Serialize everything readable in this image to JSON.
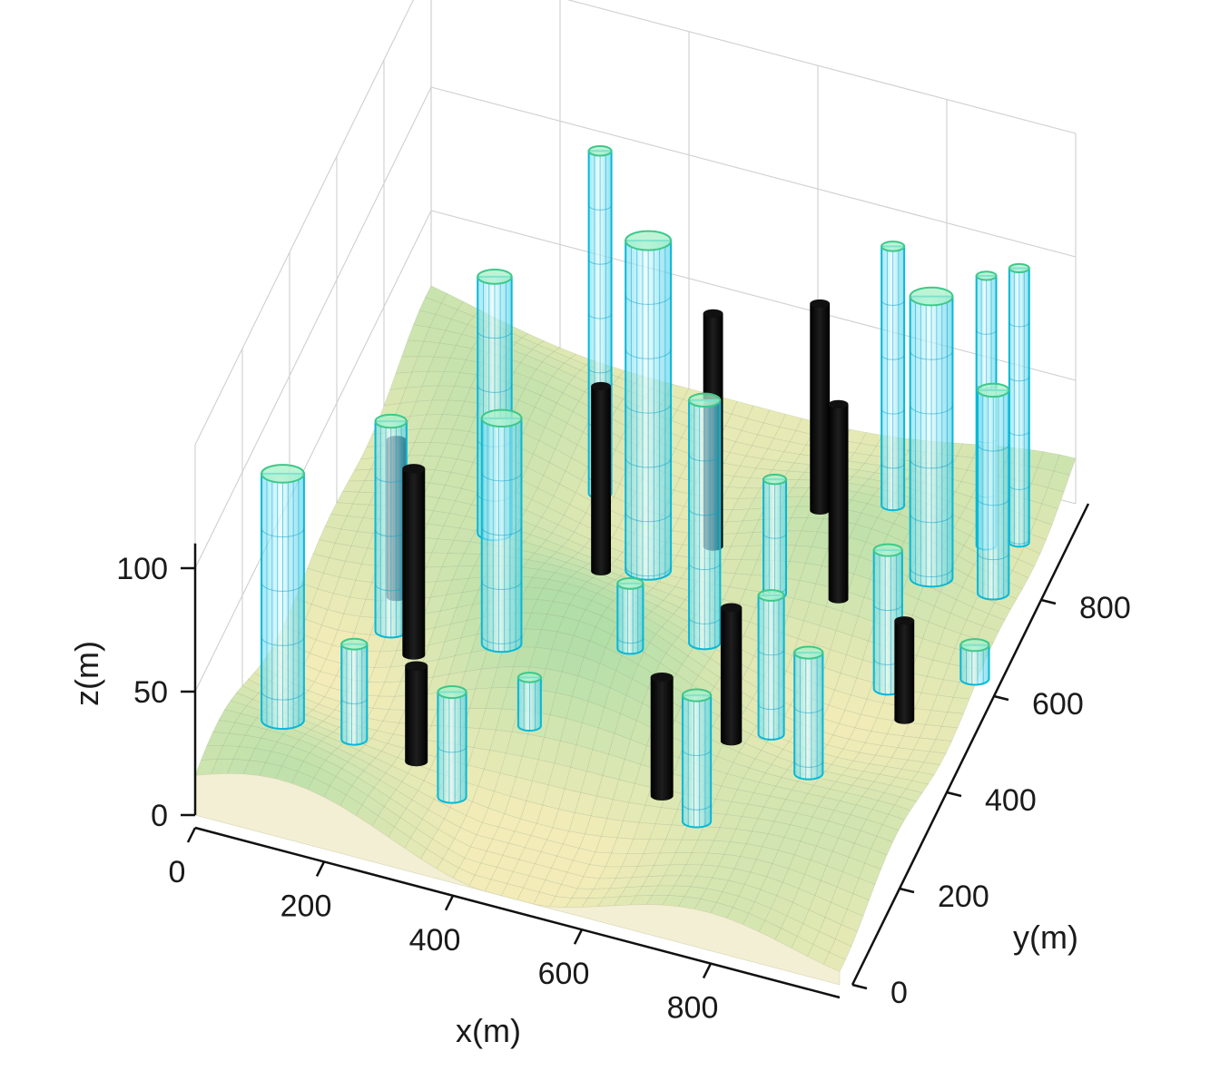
{
  "chart_data": {
    "type": "3d-surface-with-cylinders",
    "title": "",
    "xlabel": "x(m)",
    "ylabel": "y(m)",
    "zlabel": "z(m)",
    "xlim": [
      0,
      1000
    ],
    "ylim": [
      0,
      1000
    ],
    "zlim": [
      0,
      150
    ],
    "xticks": [
      0,
      200,
      400,
      600,
      800
    ],
    "xtick_labels": [
      "0",
      "200",
      "400",
      "600",
      "800"
    ],
    "yticks": [
      0,
      200,
      400,
      600,
      800
    ],
    "ytick_labels": [
      "0",
      "200",
      "400",
      "600",
      "800"
    ],
    "zticks": [
      0,
      50,
      100
    ],
    "ztick_labels": [
      "0",
      "50",
      "100"
    ],
    "grid": true,
    "colors": {
      "terrain_low": "#f3ecb8",
      "terrain_high": "#b8e0a8",
      "obstacle": "#08b8d8",
      "obstacle_fill": "#c6f6fb",
      "obstacle_top": "#3ec88a",
      "threat": "#0a0a0a"
    },
    "obstacles": [
      {
        "x": 70,
        "y": 180,
        "z_top": 108,
        "r": 30
      },
      {
        "x": 150,
        "y": 420,
        "z_top": 88,
        "r": 22
      },
      {
        "x": 245,
        "y": 600,
        "z_top": 118,
        "r": 24
      },
      {
        "x": 350,
        "y": 760,
        "z_top": 145,
        "r": 16
      },
      {
        "x": 170,
        "y": 210,
        "z_top": 40,
        "r": 18
      },
      {
        "x": 340,
        "y": 370,
        "z_top": 112,
        "r": 28
      },
      {
        "x": 465,
        "y": 650,
        "z_top": 138,
        "r": 32
      },
      {
        "x": 340,
        "y": 160,
        "z_top": 42,
        "r": 20
      },
      {
        "x": 420,
        "y": 270,
        "z_top": 32,
        "r": 16
      },
      {
        "x": 525,
        "y": 410,
        "z_top": 50,
        "r": 18
      },
      {
        "x": 600,
        "y": 520,
        "z_top": 108,
        "r": 22
      },
      {
        "x": 665,
        "y": 640,
        "z_top": 57,
        "r": 16
      },
      {
        "x": 775,
        "y": 840,
        "z_top": 120,
        "r": 16
      },
      {
        "x": 705,
        "y": 200,
        "z_top": 58,
        "r": 20
      },
      {
        "x": 740,
        "y": 420,
        "z_top": 58,
        "r": 18
      },
      {
        "x": 820,
        "y": 360,
        "z_top": 52,
        "r": 20
      },
      {
        "x": 870,
        "y": 560,
        "z_top": 58,
        "r": 20
      },
      {
        "x": 875,
        "y": 730,
        "z_top": 128,
        "r": 30
      },
      {
        "x": 920,
        "y": 840,
        "z_top": 118,
        "r": 14
      },
      {
        "x": 960,
        "y": 870,
        "z_top": 118,
        "r": 14
      },
      {
        "x": 960,
        "y": 760,
        "z_top": 90,
        "r": 22
      },
      {
        "x": 990,
        "y": 600,
        "z_top": 20,
        "r": 20
      }
    ],
    "threats": [
      {
        "x": 140,
        "y": 470,
        "z_top": 70,
        "r": 14
      },
      {
        "x": 200,
        "y": 380,
        "z_top": 80,
        "r": 16
      },
      {
        "x": 270,
        "y": 200,
        "z_top": 40,
        "r": 16
      },
      {
        "x": 410,
        "y": 600,
        "z_top": 85,
        "r": 14
      },
      {
        "x": 540,
        "y": 720,
        "z_top": 100,
        "r": 14
      },
      {
        "x": 640,
        "y": 230,
        "z_top": 55,
        "r": 16
      },
      {
        "x": 700,
        "y": 360,
        "z_top": 62,
        "r": 15
      },
      {
        "x": 680,
        "y": 790,
        "z_top": 100,
        "r": 14
      },
      {
        "x": 760,
        "y": 650,
        "z_top": 92,
        "r": 14
      },
      {
        "x": 910,
        "y": 520,
        "z_top": 40,
        "r": 14
      }
    ]
  }
}
